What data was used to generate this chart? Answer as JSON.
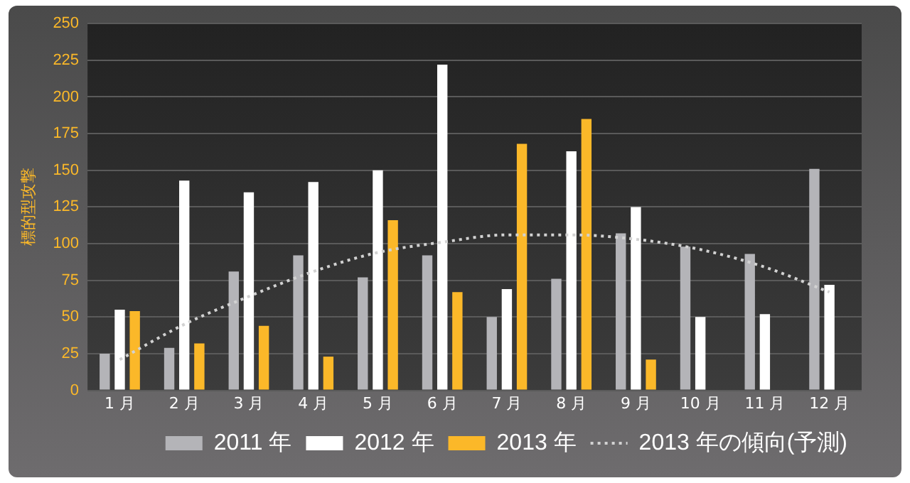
{
  "chart_data": {
    "type": "bar",
    "ylabel": "標的型攻撃",
    "categories": [
      "1 月",
      "2 月",
      "3 月",
      "4 月",
      "5 月",
      "6 月",
      "7 月",
      "8 月",
      "9 月",
      "10 月",
      "11 月",
      "12 月"
    ],
    "series": [
      {
        "name": "2011 年",
        "color": "#b4b4b8",
        "values": [
          25,
          29,
          81,
          92,
          77,
          92,
          50,
          76,
          107,
          98,
          93,
          151
        ]
      },
      {
        "name": "2012 年",
        "color": "#ffffff",
        "values": [
          55,
          143,
          135,
          142,
          150,
          222,
          69,
          163,
          125,
          50,
          52,
          72
        ]
      },
      {
        "name": "2013 年",
        "color": "#fbb829",
        "values": [
          54,
          32,
          44,
          23,
          116,
          67,
          168,
          185,
          21,
          null,
          null,
          null
        ]
      },
      {
        "name": "2013 年の傾向(予測)",
        "type": "line",
        "color": "#d2d2d2",
        "line_style": "dotted",
        "marker": "none",
        "values": [
          21,
          45,
          64,
          81,
          94,
          101,
          106,
          106,
          103,
          96,
          84,
          67
        ]
      }
    ],
    "ylim": [
      0,
      250
    ],
    "yticks": [
      0,
      25,
      50,
      75,
      100,
      125,
      150,
      175,
      200,
      225,
      250
    ],
    "grid": "y",
    "legend": "bottom"
  }
}
